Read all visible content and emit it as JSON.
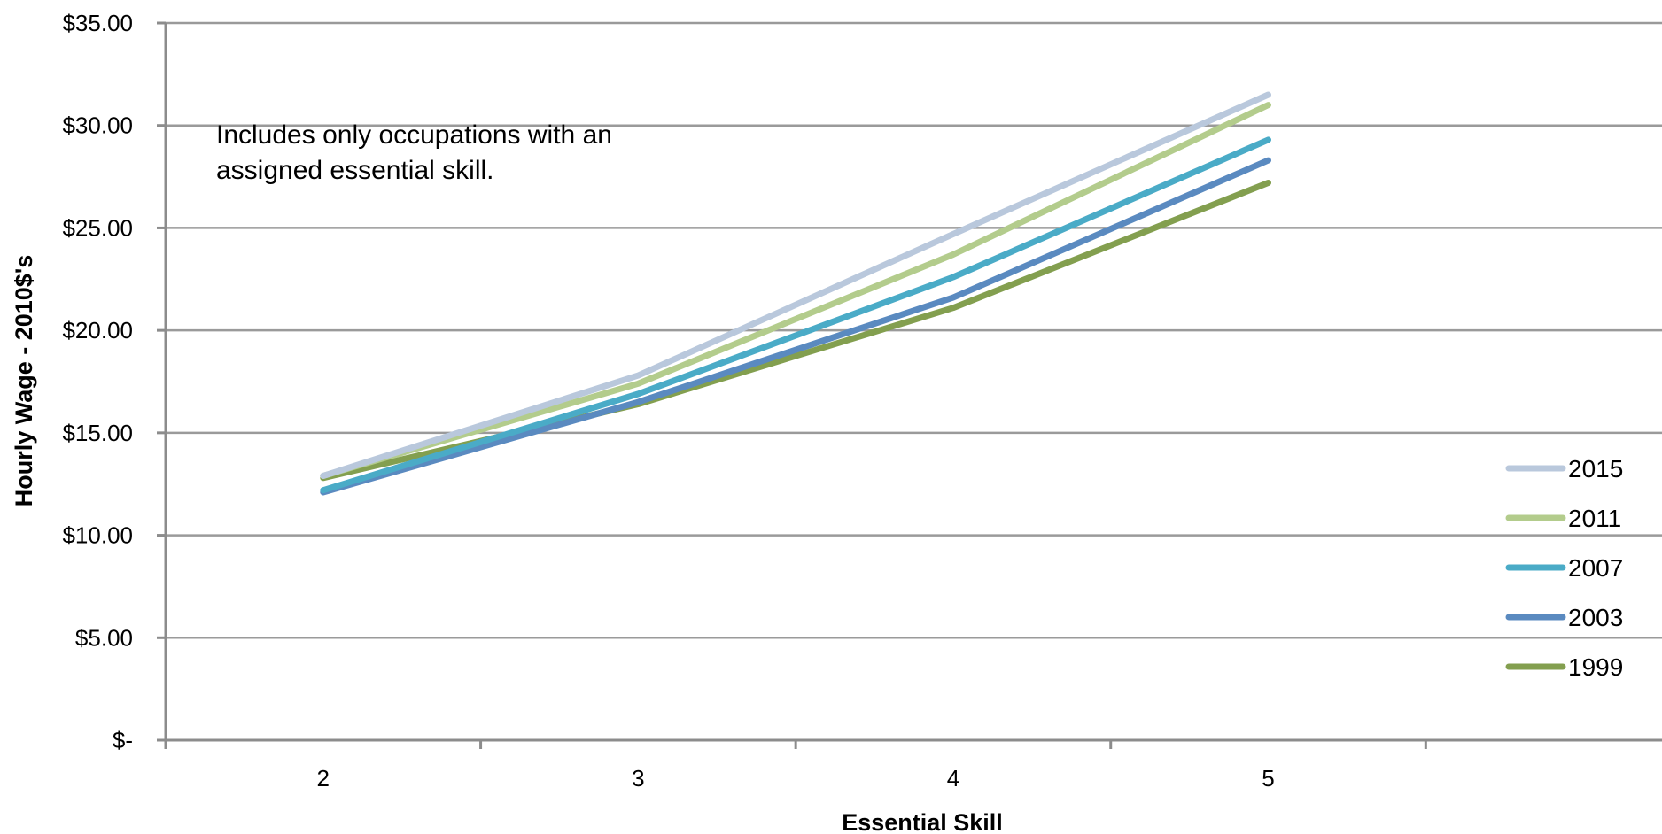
{
  "chart_data": {
    "type": "line",
    "categories": [
      "2",
      "3",
      "4",
      "5"
    ],
    "series": [
      {
        "name": "2015",
        "color": "#b9c8dc",
        "values": [
          12.9,
          17.8,
          24.7,
          31.5
        ]
      },
      {
        "name": "2011",
        "color": "#b3cc8c",
        "values": [
          12.9,
          17.4,
          23.7,
          31.0
        ]
      },
      {
        "name": "2007",
        "color": "#4aabc7",
        "values": [
          12.2,
          16.9,
          22.6,
          29.3
        ]
      },
      {
        "name": "2003",
        "color": "#5a8ac0",
        "values": [
          12.1,
          16.5,
          21.6,
          28.3
        ]
      },
      {
        "name": "1999",
        "color": "#839f4f",
        "values": [
          12.8,
          16.4,
          21.1,
          27.2
        ]
      }
    ],
    "y_ticks": [
      {
        "value": 0,
        "label": "$-"
      },
      {
        "value": 5,
        "label": "$5.00"
      },
      {
        "value": 10,
        "label": "$10.00"
      },
      {
        "value": 15,
        "label": "$15.00"
      },
      {
        "value": 20,
        "label": "$20.00"
      },
      {
        "value": 25,
        "label": "$25.00"
      },
      {
        "value": 30,
        "label": "$30.00"
      },
      {
        "value": 35,
        "label": "$35.00"
      }
    ],
    "ylim": [
      0,
      35
    ],
    "xlabel": "Essential Skill",
    "ylabel": "Hourly Wage - 2010$'s",
    "annotation": [
      "Includes only occupations with an",
      "assigned essential skill."
    ],
    "grid": true,
    "legend_position": "right"
  }
}
